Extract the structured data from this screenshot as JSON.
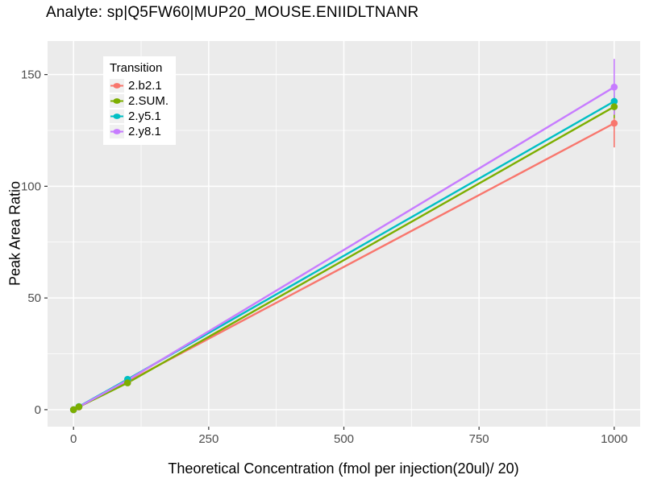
{
  "title": "Analyte: sp|Q5FW60|MUP20_MOUSE.ENIIDLTNANR",
  "chart_data": {
    "type": "line",
    "title": "Analyte: sp|Q5FW60|MUP20_MOUSE.ENIIDLTNANR",
    "xlabel": "Theoretical Concentration (fmol per injection(20ul)/ 20)",
    "ylabel": "Peak Area Ratio",
    "legend_title": "Transition",
    "legend_position": "top-left-inside",
    "xlim": [
      -48,
      1048
    ],
    "ylim": [
      -7.6,
      165
    ],
    "x_ticks": [
      0,
      250,
      500,
      750,
      1000
    ],
    "y_ticks": [
      0,
      50,
      100,
      150
    ],
    "x_minor_gridlines": [
      125,
      375,
      625,
      875
    ],
    "y_minor_gridlines": [
      25,
      75,
      125
    ],
    "grid": "on",
    "x": [
      0,
      10,
      100,
      1000
    ],
    "series": [
      {
        "name": "2.b2.1",
        "color": "#F8766D",
        "values": [
          0,
          1.2,
          12.5,
          128.2
        ],
        "errorbar_x": 1000,
        "error_low": 117.4,
        "error_high": 139.5
      },
      {
        "name": "2.SUM.",
        "color": "#7CAE00",
        "values": [
          0,
          1.3,
          12.0,
          135.6
        ],
        "errorbar_x": 1000,
        "error_low": 130.5,
        "error_high": 140.5
      },
      {
        "name": "2.y5.1",
        "color": "#00BFC4",
        "values": [
          0,
          1.4,
          13.6,
          138.0
        ],
        "errorbar_x": 1000,
        "error_low": 133.5,
        "error_high": 142.5
      },
      {
        "name": "2.y8.1",
        "color": "#C77CFF",
        "values": [
          0,
          1.3,
          13.2,
          144.4
        ],
        "errorbar_x": 1000,
        "error_low": 132.0,
        "error_high": 157.0
      }
    ],
    "colors": {
      "panel_bg": "#EBEBEB",
      "gridline": "#FFFFFF",
      "tick_mark": "#333333",
      "tick_label": "#4D4D4D",
      "legend_key_bg": "#F0F0F0"
    }
  }
}
